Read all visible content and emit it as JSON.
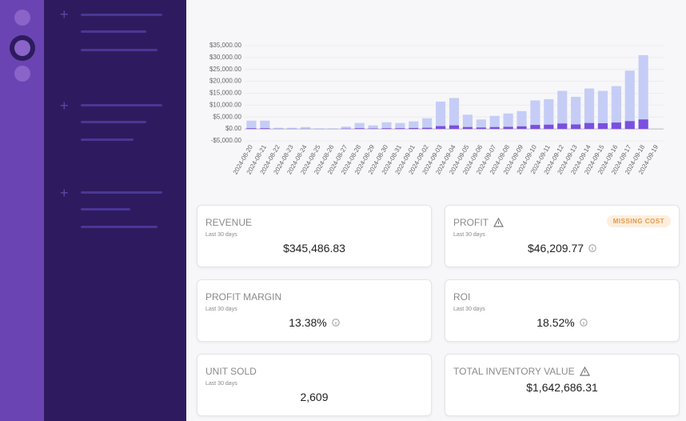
{
  "chart_data": {
    "type": "bar",
    "categories": [
      "2024-08-20",
      "2024-08-21",
      "2024-08-22",
      "2024-08-23",
      "2024-08-24",
      "2024-08-25",
      "2024-08-26",
      "2024-08-27",
      "2024-08-28",
      "2024-08-29",
      "2024-08-30",
      "2024-08-31",
      "2024-09-01",
      "2024-09-02",
      "2024-09-03",
      "2024-09-04",
      "2024-09-05",
      "2024-09-06",
      "2024-09-07",
      "2024-09-08",
      "2024-09-09",
      "2024-09-10",
      "2024-09-11",
      "2024-09-12",
      "2024-09-13",
      "2024-09-14",
      "2024-09-15",
      "2024-09-16",
      "2024-09-17",
      "2024-09-18",
      "2024-09-19"
    ],
    "series": [
      {
        "color": "#c5cdf6",
        "values": [
          3500,
          3500,
          500,
          500,
          800,
          300,
          300,
          1000,
          2500,
          1500,
          2800,
          2500,
          3200,
          4500,
          11500,
          13000,
          6000,
          4000,
          5500,
          6500,
          7500,
          12000,
          12500,
          16000,
          13500,
          17000,
          16000,
          18000,
          24500,
          31000,
          0
        ]
      },
      {
        "color": "#7b4fe0",
        "values": [
          300,
          300,
          100,
          100,
          100,
          50,
          50,
          150,
          300,
          200,
          300,
          300,
          400,
          500,
          1200,
          1500,
          800,
          600,
          800,
          900,
          1100,
          1700,
          1800,
          2300,
          1900,
          2500,
          2400,
          2700,
          3300,
          4000,
          0
        ]
      }
    ],
    "ylim": [
      -5000,
      35000
    ],
    "yticks": [
      {
        "value": -5000,
        "label": "-$5,000.00"
      },
      {
        "value": 0,
        "label": "$0.00"
      },
      {
        "value": 5000,
        "label": "$5,000.00"
      },
      {
        "value": 10000,
        "label": "$10,000.00"
      },
      {
        "value": 15000,
        "label": "$15,000.00"
      },
      {
        "value": 20000,
        "label": "$20,000.00"
      },
      {
        "value": 25000,
        "label": "$25,000.00"
      },
      {
        "value": 30000,
        "label": "$30,000.00"
      },
      {
        "value": 35000,
        "label": "$35,000.00"
      }
    ],
    "grid": true
  },
  "cards": [
    {
      "title": "REVENUE",
      "subtitle": "Last 30 days",
      "value": "$345,486.83"
    },
    {
      "title": "PROFIT",
      "subtitle": "Last 30 days",
      "value": "$46,209.77",
      "badge": "MISSING COST"
    },
    {
      "title": "PROFIT MARGIN",
      "subtitle": "Last 30 days",
      "value": "13.38%"
    },
    {
      "title": "ROI",
      "subtitle": "Last 30 days",
      "value": "18.52%"
    },
    {
      "title": "UNIT SOLD",
      "subtitle": "Last 30 days",
      "value": "2,609"
    },
    {
      "title": "TOTAL INVENTORY VALUE",
      "value": "$1,642,686.31"
    }
  ]
}
